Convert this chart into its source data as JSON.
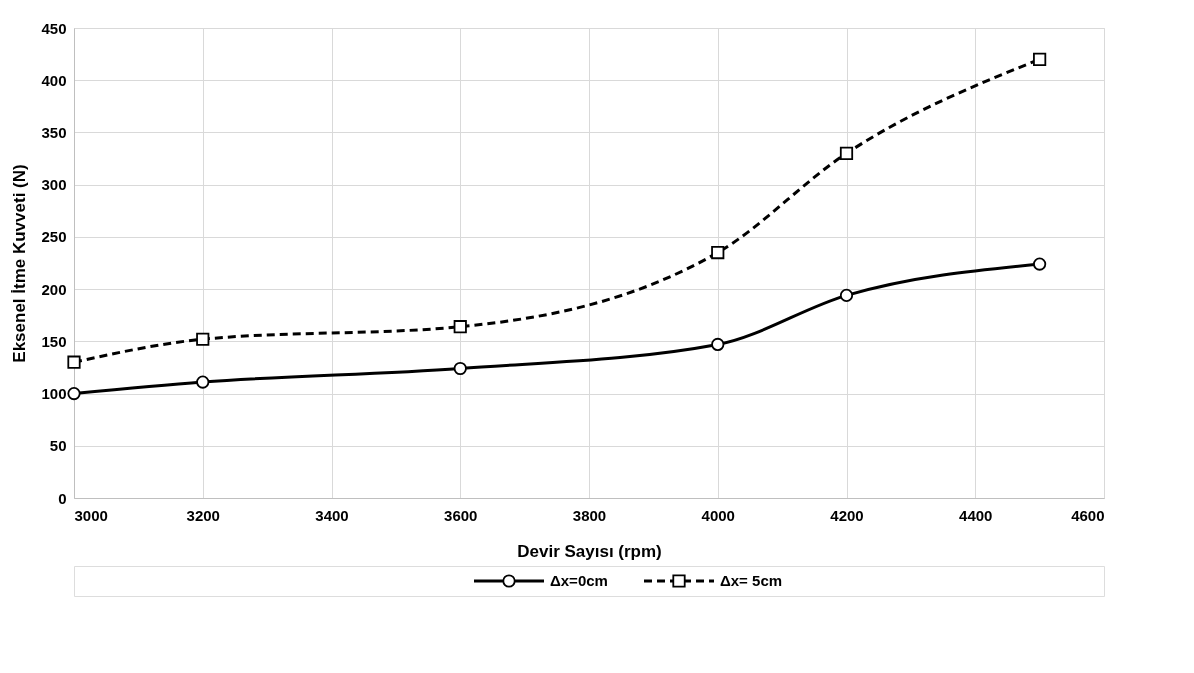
{
  "chart_data": {
    "type": "line",
    "xlabel": "Devir Sayısı (rpm)",
    "ylabel": "Eksenel İtme Kuvveti (N)",
    "x": [
      3000,
      3200,
      3600,
      4000,
      4200,
      4500
    ],
    "xlim": [
      3000,
      4600
    ],
    "xticks": [
      3000,
      3200,
      3400,
      3600,
      3800,
      4000,
      4200,
      4400,
      4600
    ],
    "ylim": [
      0,
      450
    ],
    "yticks": [
      0,
      50,
      100,
      150,
      200,
      250,
      300,
      350,
      400,
      450
    ],
    "grid": true,
    "legend": "bottom",
    "series": [
      {
        "name": "Δx=0cm",
        "color": "#000000",
        "marker": "circle",
        "line_style": "solid",
        "values": [
          100,
          111,
          124,
          147,
          194,
          224
        ]
      },
      {
        "name": "Δx= 5cm",
        "color": "#000000",
        "marker": "square",
        "line_style": "dashed",
        "values": [
          130,
          152,
          164,
          235,
          330,
          420
        ]
      }
    ]
  }
}
